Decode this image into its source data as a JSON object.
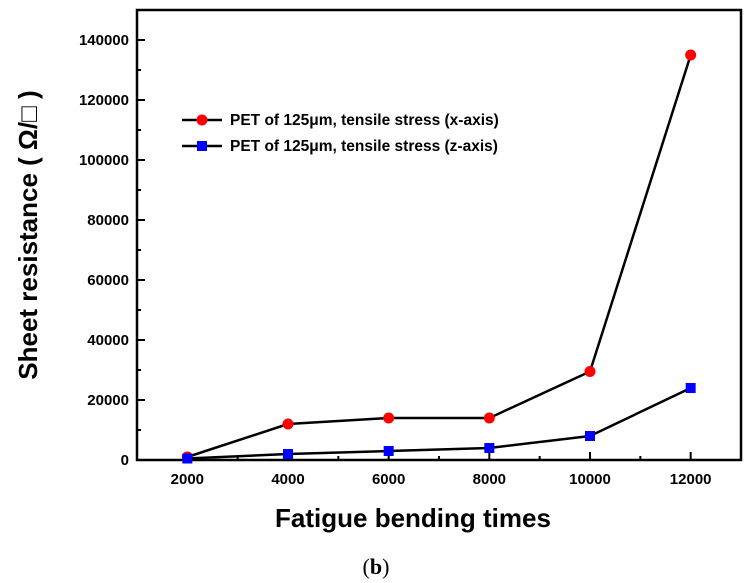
{
  "chart_data": {
    "type": "line",
    "xlabel": "Fatigue bending times",
    "ylabel": "Sheet resistance ( Ω/□ )",
    "xlim": [
      1000,
      13000
    ],
    "ylim": [
      0,
      150000
    ],
    "x_ticks": [
      "2000",
      "4000",
      "6000",
      "8000",
      "10000",
      "12000"
    ],
    "y_ticks": [
      "0",
      "20000",
      "40000",
      "60000",
      "80000",
      "100000",
      "120000",
      "140000"
    ],
    "grid": false,
    "legend_position": "top-left",
    "series": [
      {
        "name": "PET of 125μm, tensile stress (x-axis)",
        "marker": "circle",
        "color": "#ff0000",
        "x": [
          2000,
          4000,
          6000,
          8000,
          10000,
          12000
        ],
        "y": [
          1000,
          12000,
          14000,
          14000,
          29500,
          135000
        ]
      },
      {
        "name": "PET of 125μm, tensile stress (z-axis)",
        "marker": "square",
        "color": "#0000ff",
        "x": [
          2000,
          4000,
          6000,
          8000,
          10000,
          12000
        ],
        "y": [
          500,
          2000,
          3000,
          4000,
          8000,
          24000
        ]
      }
    ]
  },
  "caption": {
    "open": "(",
    "letter": "b",
    "close": ")"
  }
}
